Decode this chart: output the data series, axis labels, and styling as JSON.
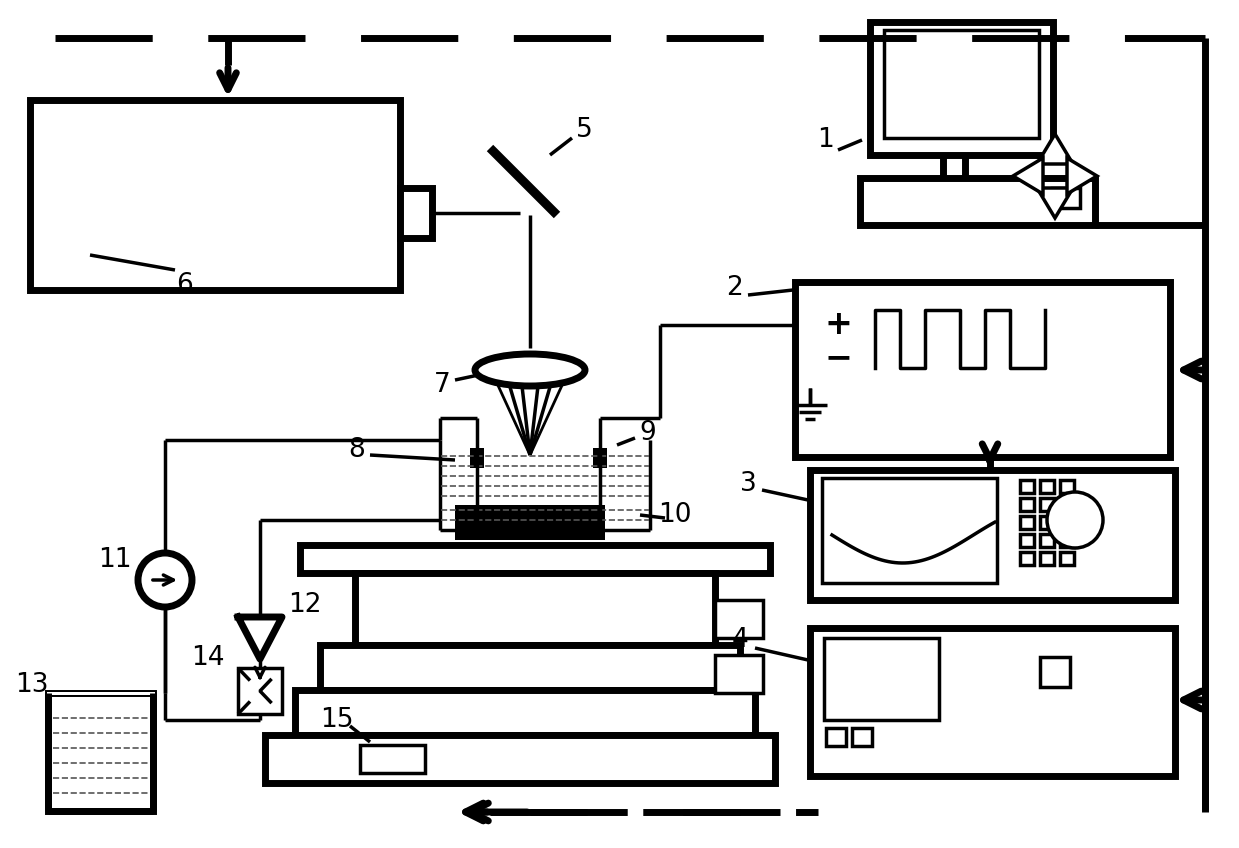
{
  "bg": "#ffffff",
  "lw": 2.5,
  "lw2": 5.0,
  "fw": 12.39,
  "fh": 8.48
}
